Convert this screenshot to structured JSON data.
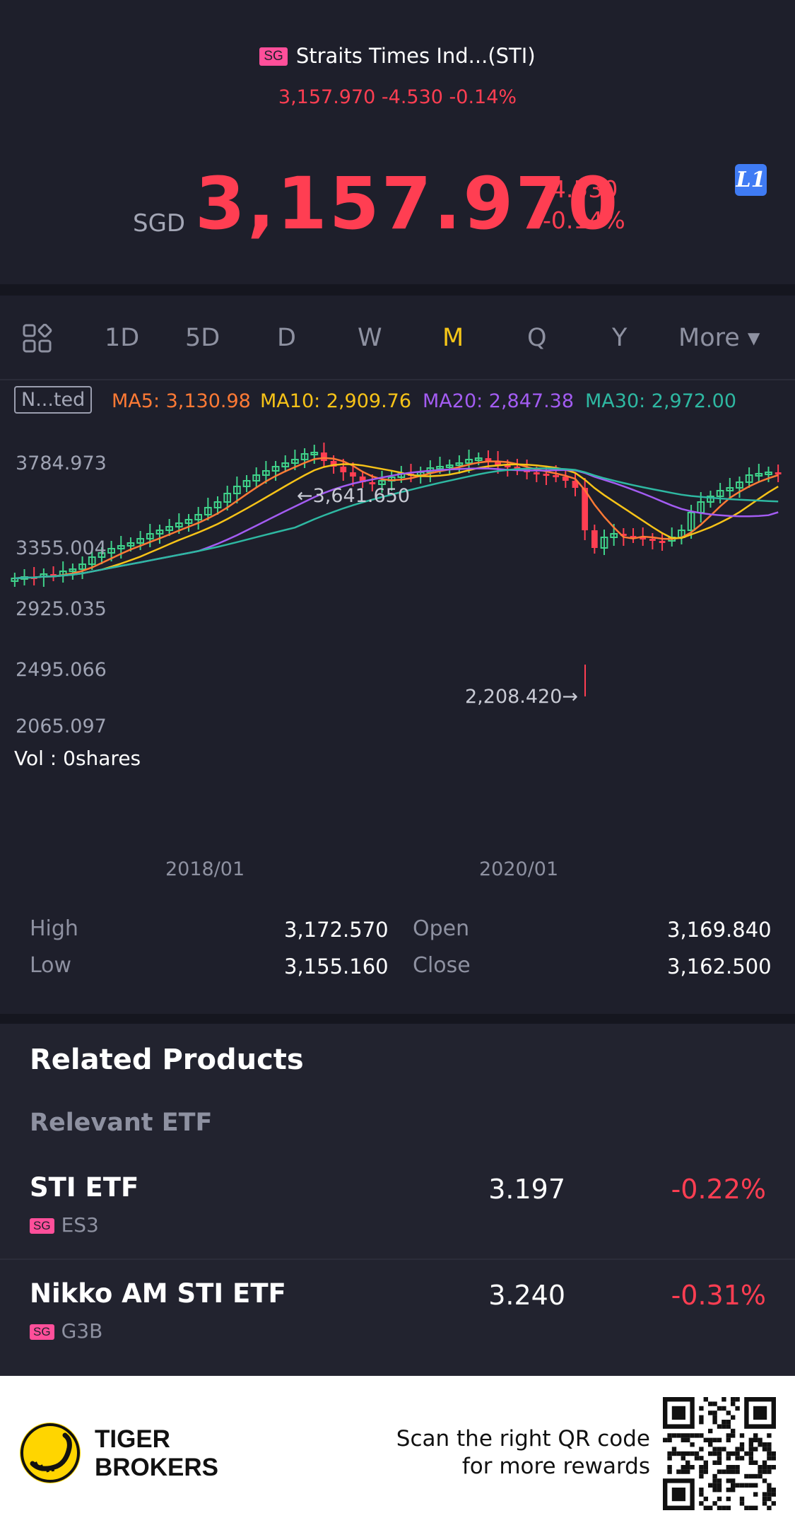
{
  "header": {
    "market_badge": "SG",
    "title": "Straits Times Ind...(STI)",
    "subline": "3,157.970 -4.530 -0.14%",
    "currency": "SGD",
    "price": "3,157.970",
    "change": "-4.530",
    "change_pct": "-0.14%",
    "level_badge": "L1"
  },
  "tabs": [
    {
      "label": "1D"
    },
    {
      "label": "5D"
    },
    {
      "label": "D"
    },
    {
      "label": "W"
    },
    {
      "label": "M",
      "active": true
    },
    {
      "label": "Q"
    },
    {
      "label": "Y"
    },
    {
      "label": "More ▾"
    }
  ],
  "indicator": {
    "box": "N...ted",
    "ma5": "MA5: 3,130.98",
    "ma10": "MA10: 2,909.76",
    "ma20": "MA20: 2,847.38",
    "ma30": "MA30: 2,972.00",
    "colors": {
      "ma5": "#ff7a35",
      "ma10": "#f7c318",
      "ma20": "#a35cf2",
      "ma30": "#2eb8a2",
      "up": "#ff3e52",
      "down": "#3fd28a"
    }
  },
  "chart_data": {
    "type": "candlestick",
    "y_ticks": [
      "3784.973",
      "3355.004",
      "2925.035",
      "2495.066",
      "2065.097"
    ],
    "x_ticks": [
      "2018/01",
      "2020/01"
    ],
    "annotations": {
      "high": "←3,641.650",
      "low": "2,208.420→"
    },
    "volume_label": "Vol  : 0shares",
    "ylim": [
      2065.097,
      3784.973
    ]
  },
  "stats": {
    "high_label": "High",
    "high": "3,172.570",
    "low_label": "Low",
    "low": "3,155.160",
    "open_label": "Open",
    "open": "3,169.840",
    "close_label": "Close",
    "close": "3,162.500"
  },
  "related": {
    "title": "Related Products",
    "subtitle": "Relevant ETF",
    "items": [
      {
        "name": "STI ETF",
        "badge": "SG",
        "code": "ES3",
        "price": "3.197",
        "change": "-0.22%"
      },
      {
        "name": "Nikko AM STI ETF",
        "badge": "SG",
        "code": "G3B",
        "price": "3.240",
        "change": "-0.31%"
      }
    ]
  },
  "footer": {
    "brand_line1": "TIGER",
    "brand_line2": "BROKERS",
    "scan_line1": "Scan the right QR code",
    "scan_line2": "for more rewards"
  }
}
